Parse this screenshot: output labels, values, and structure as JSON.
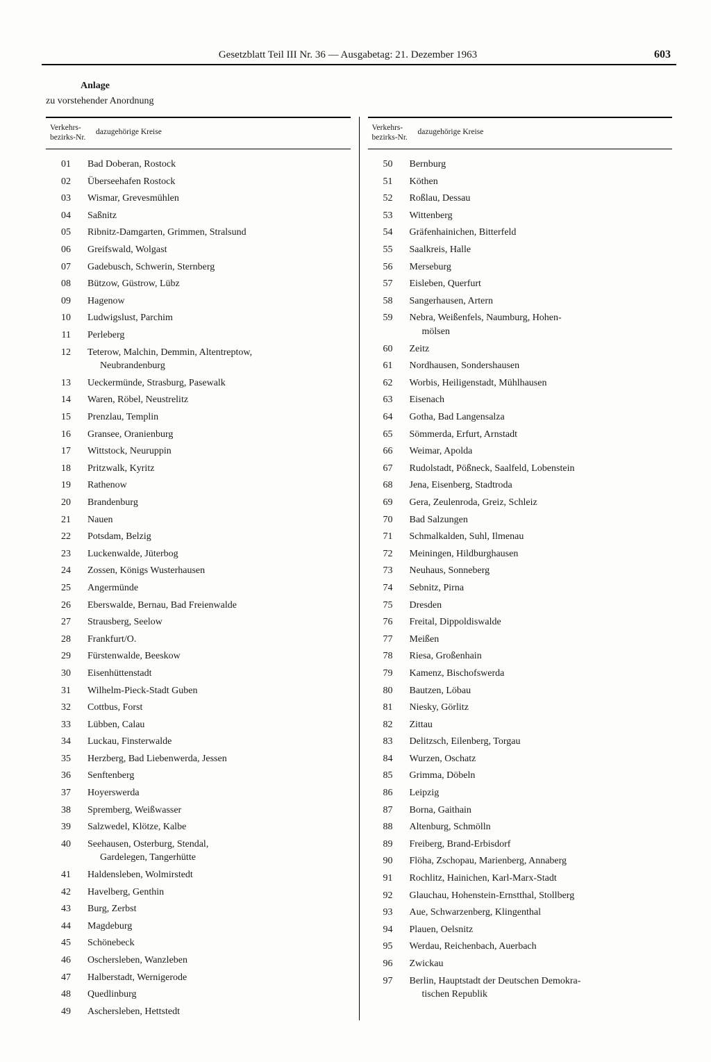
{
  "header": {
    "title": "Gesetzblatt Teil III Nr. 36 — Ausgabetag: 21. Dezember 1963",
    "page": "603"
  },
  "anlage": {
    "title": "Anlage",
    "sub": "zu vorstehender Anordnung"
  },
  "colhead": {
    "nr_l1": "Verkehrs-",
    "nr_l2": "bezirks-Nr.",
    "kr": "dazugehörige Kreise"
  },
  "left": [
    {
      "nr": "01",
      "kr": "Bad Doberan, Rostock"
    },
    {
      "nr": "02",
      "kr": "Überseehafen Rostock"
    },
    {
      "nr": "03",
      "kr": "Wismar, Grevesmühlen"
    },
    {
      "nr": "04",
      "kr": "Saßnitz"
    },
    {
      "nr": "05",
      "kr": "Ribnitz-Damgarten, Grimmen, Stralsund"
    },
    {
      "nr": "06",
      "kr": "Greifswald, Wolgast"
    },
    {
      "nr": "07",
      "kr": "Gadebusch, Schwerin, Sternberg"
    },
    {
      "nr": "08",
      "kr": "Bützow, Güstrow, Lübz"
    },
    {
      "nr": "09",
      "kr": "Hagenow"
    },
    {
      "nr": "10",
      "kr": "Ludwigslust, Parchim"
    },
    {
      "nr": "11",
      "kr": "Perleberg"
    },
    {
      "nr": "12",
      "kr": "Teterow, Malchin, Demmin, Altentreptow,",
      "kr2": "Neubrandenburg"
    },
    {
      "nr": "13",
      "kr": "Ueckermünde, Strasburg, Pasewalk"
    },
    {
      "nr": "14",
      "kr": "Waren, Röbel, Neustrelitz"
    },
    {
      "nr": "15",
      "kr": "Prenzlau, Templin"
    },
    {
      "nr": "16",
      "kr": "Gransee, Oranienburg"
    },
    {
      "nr": "17",
      "kr": "Wittstock, Neuruppin"
    },
    {
      "nr": "18",
      "kr": "Pritzwalk, Kyritz"
    },
    {
      "nr": "19",
      "kr": "Rathenow"
    },
    {
      "nr": "20",
      "kr": "Brandenburg"
    },
    {
      "nr": "21",
      "kr": "Nauen"
    },
    {
      "nr": "22",
      "kr": "Potsdam, Belzig"
    },
    {
      "nr": "23",
      "kr": "Luckenwalde, Jüterbog"
    },
    {
      "nr": "24",
      "kr": "Zossen, Königs Wusterhausen"
    },
    {
      "nr": "25",
      "kr": "Angermünde"
    },
    {
      "nr": "26",
      "kr": "Eberswalde, Bernau, Bad Freienwalde"
    },
    {
      "nr": "27",
      "kr": "Strausberg, Seelow"
    },
    {
      "nr": "28",
      "kr": "Frankfurt/O."
    },
    {
      "nr": "29",
      "kr": "Fürstenwalde, Beeskow"
    },
    {
      "nr": "30",
      "kr": "Eisenhüttenstadt"
    },
    {
      "nr": "31",
      "kr": "Wilhelm-Pieck-Stadt Guben"
    },
    {
      "nr": "32",
      "kr": "Cottbus, Forst"
    },
    {
      "nr": "33",
      "kr": "Lübben, Calau"
    },
    {
      "nr": "34",
      "kr": "Luckau, Finsterwalde"
    },
    {
      "nr": "35",
      "kr": "Herzberg, Bad Liebenwerda, Jessen"
    },
    {
      "nr": "36",
      "kr": "Senftenberg"
    },
    {
      "nr": "37",
      "kr": "Hoyerswerda"
    },
    {
      "nr": "38",
      "kr": "Spremberg, Weißwasser"
    },
    {
      "nr": "39",
      "kr": "Salzwedel, Klötze, Kalbe"
    },
    {
      "nr": "40",
      "kr": "Seehausen, Osterburg, Stendal,",
      "kr2": "Gardelegen, Tangerhütte"
    },
    {
      "nr": "41",
      "kr": "Haldensleben, Wolmirstedt"
    },
    {
      "nr": "42",
      "kr": "Havelberg, Genthin"
    },
    {
      "nr": "43",
      "kr": "Burg, Zerbst"
    },
    {
      "nr": "44",
      "kr": "Magdeburg"
    },
    {
      "nr": "45",
      "kr": "Schönebeck"
    },
    {
      "nr": "46",
      "kr": "Oschersleben, Wanzleben"
    },
    {
      "nr": "47",
      "kr": "Halberstadt, Wernigerode"
    },
    {
      "nr": "48",
      "kr": "Quedlinburg"
    },
    {
      "nr": "49",
      "kr": "Aschersleben, Hettstedt"
    }
  ],
  "right": [
    {
      "nr": "50",
      "kr": "Bernburg"
    },
    {
      "nr": "51",
      "kr": "Köthen"
    },
    {
      "nr": "52",
      "kr": "Roßlau, Dessau"
    },
    {
      "nr": "53",
      "kr": "Wittenberg"
    },
    {
      "nr": "54",
      "kr": "Gräfenhainichen, Bitterfeld"
    },
    {
      "nr": "55",
      "kr": "Saalkreis, Halle"
    },
    {
      "nr": "56",
      "kr": "Merseburg"
    },
    {
      "nr": "57",
      "kr": "Eisleben, Querfurt"
    },
    {
      "nr": "58",
      "kr": "Sangerhausen, Artern"
    },
    {
      "nr": "59",
      "kr": "Nebra, Weißenfels, Naumburg, Hohen-",
      "kr2": "mölsen"
    },
    {
      "nr": "60",
      "kr": "Zeitz"
    },
    {
      "nr": "61",
      "kr": "Nordhausen, Sondershausen"
    },
    {
      "nr": "62",
      "kr": "Worbis, Heiligenstadt, Mühlhausen"
    },
    {
      "nr": "63",
      "kr": "Eisenach"
    },
    {
      "nr": "64",
      "kr": "Gotha, Bad Langensalza"
    },
    {
      "nr": "65",
      "kr": "Sömmerda, Erfurt, Arnstadt"
    },
    {
      "nr": "66",
      "kr": "Weimar, Apolda"
    },
    {
      "nr": "67",
      "kr": "Rudolstadt, Pößneck, Saalfeld, Lobenstein"
    },
    {
      "nr": "68",
      "kr": "Jena, Eisenberg, Stadtroda"
    },
    {
      "nr": "69",
      "kr": "Gera, Zeulenroda, Greiz, Schleiz"
    },
    {
      "nr": "70",
      "kr": "Bad Salzungen"
    },
    {
      "nr": "71",
      "kr": "Schmalkalden, Suhl, Ilmenau"
    },
    {
      "nr": "72",
      "kr": "Meiningen, Hildburghausen"
    },
    {
      "nr": "73",
      "kr": "Neuhaus, Sonneberg"
    },
    {
      "nr": "74",
      "kr": "Sebnitz, Pirna"
    },
    {
      "nr": "75",
      "kr": "Dresden"
    },
    {
      "nr": "76",
      "kr": "Freital, Dippoldiswalde"
    },
    {
      "nr": "77",
      "kr": "Meißen"
    },
    {
      "nr": "78",
      "kr": "Riesa, Großenhain"
    },
    {
      "nr": "79",
      "kr": "Kamenz, Bischofswerda"
    },
    {
      "nr": "80",
      "kr": "Bautzen, Löbau"
    },
    {
      "nr": "81",
      "kr": "Niesky, Görlitz"
    },
    {
      "nr": "82",
      "kr": "Zittau"
    },
    {
      "nr": "83",
      "kr": "Delitzsch, Eilenberg, Torgau"
    },
    {
      "nr": "84",
      "kr": "Wurzen, Oschatz"
    },
    {
      "nr": "85",
      "kr": "Grimma, Döbeln"
    },
    {
      "nr": "86",
      "kr": "Leipzig"
    },
    {
      "nr": "87",
      "kr": "Borna, Gaithain"
    },
    {
      "nr": "88",
      "kr": "Altenburg, Schmölln"
    },
    {
      "nr": "89",
      "kr": "Freiberg, Brand-Erbisdorf"
    },
    {
      "nr": "90",
      "kr": "Flöha, Zschopau, Marienberg, Annaberg"
    },
    {
      "nr": "91",
      "kr": "Rochlitz, Hainichen, Karl-Marx-Stadt"
    },
    {
      "nr": "92",
      "kr": "Glauchau, Hohenstein-Ernstthal, Stollberg"
    },
    {
      "nr": "93",
      "kr": "Aue, Schwarzenberg, Klingenthal"
    },
    {
      "nr": "94",
      "kr": "Plauen, Oelsnitz"
    },
    {
      "nr": "95",
      "kr": "Werdau, Reichenbach, Auerbach"
    },
    {
      "nr": "96",
      "kr": "Zwickau"
    },
    {
      "nr": "97",
      "kr": "Berlin, Hauptstadt der Deutschen Demokra-",
      "kr2": "tischen Republik"
    }
  ]
}
